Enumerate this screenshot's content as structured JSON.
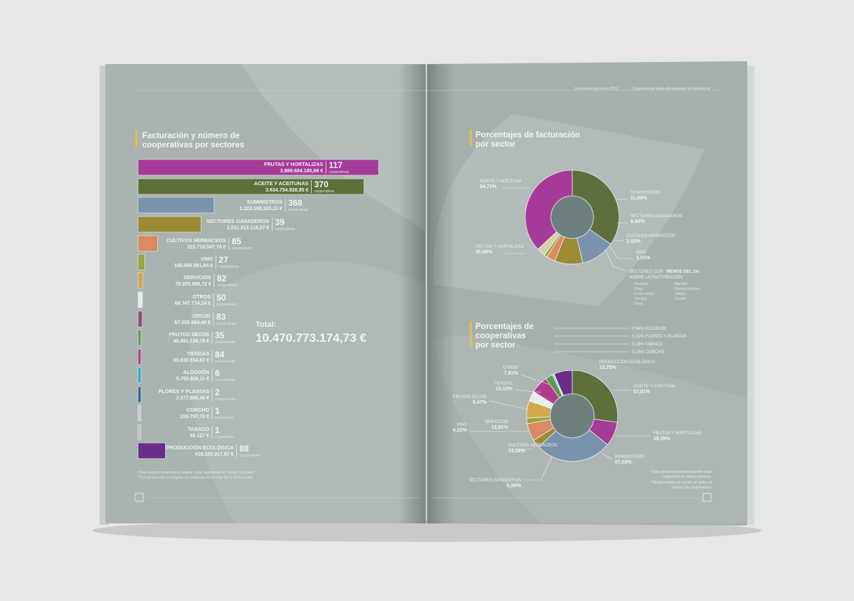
{
  "header": {
    "left_text": "Resumen ejecutivo 2022",
    "right_text": "Cooperativas Agro-alimentarias de Andalucía"
  },
  "left_page": {
    "title_line1": "Facturación  y número de",
    "title_line2": "cooperativas por sectores",
    "total_label": "Total:",
    "total_value": "10.470.773.174,73 €",
    "footnote1": "*Una misma cooperativa puede estar registrada en varios sectores.",
    "footnote2": "**La producción ecológica no computa en el total de la facturación."
  },
  "right_page": {
    "pie1_title_line1": "Porcentajes de facturación",
    "pie1_title_line2": "por sector",
    "pie2_title_line1": "Porcentajes de",
    "pie2_title_line2": "cooperativas",
    "pie2_title_line3": "por sector",
    "minor_header_1": "SECTORES CON",
    "minor_header_bold": "MENOS DEL 1%",
    "minor_header_2": "SOBRE LA FACTURACIÓN:",
    "minor_col1": [
      "· Servicios",
      "· Orujo",
      "· Frutos secos",
      "· Tiendas",
      "· Otros"
    ],
    "minor_col2": [
      "· Algodón",
      "· Flores y plantas",
      "· Tabaco",
      "· Corcho"
    ],
    "footnote1": "*Una misma cooperativa puede estar",
    "footnote2": "registrada en varios sectores.",
    "footnote3": "**El porcentaje por sector se aplica al",
    "footnote4": "número de cooperativas"
  },
  "chart_data": [
    {
      "type": "bar",
      "title": "Facturación  y número de cooperativas por sectores",
      "orientation": "horizontal",
      "categories": [
        "FRUTAS Y HORTALIZAS",
        "ACEITE Y ACEITUNAS",
        "SUMINISTROS",
        "SECTORES GANADEROS",
        "CULTIVOS HERBÁCEOS",
        "VINO",
        "SERVICIOS",
        "OTROS",
        "ORUJO",
        "FRUTOS SECOS",
        "TIENDAS",
        "ALGODÓN",
        "FLORES Y PLANTAS",
        "CORCHO",
        "TABACO",
        "PRODUCCIÓN ECOLÓGICA"
      ],
      "values": [
        3869684185.68,
        3634754928.85,
        1223168220.22,
        1011213116.07,
        315710547.76,
        106084981.84,
        78205686.72,
        69747774.14,
        67025964.48,
        45491126.78,
        38638834.83,
        5755928.11,
        3077988.46,
        155797.72,
        89127,
        439159917.67
      ],
      "value_labels": [
        "3.869.684.185,68 €",
        "3.634.754.928,85 €",
        "1.223.168.220,22 €",
        "1.011.213.116,07 €",
        "315.710.547,76 €",
        "106.084.981,84 €",
        "78.205.686,72 €",
        "69.747.774,14 €",
        "67.025.964,48 €",
        "45.491.126,78 €",
        "38.638.834,83 €",
        "5.755.928,11 €",
        "3.077.988,46 €",
        "155.797,72 €",
        "89.127 €",
        "439.159.917,67 €"
      ],
      "counts": [
        "117",
        "370",
        "368",
        "39",
        "85",
        "27",
        "82",
        "50",
        "83",
        "35",
        "84",
        "6",
        "2",
        "1",
        "1",
        "88"
      ],
      "count_units": [
        "cooperativas",
        "cooperativas",
        "cooperativas",
        "cooperativas",
        "cooperativas",
        "cooperativas",
        "cooperativas",
        "cooperativas",
        "cooperativas",
        "cooperativas",
        "cooperativas",
        "cooperativas",
        "cooperativas",
        "cooperativa",
        "cooperativa",
        "cooperativas"
      ],
      "colors": [
        "#a63a98",
        "#5e6f3c",
        "#7a92ab",
        "#9d8a35",
        "#d98a60",
        "#9aa33c",
        "#d1a84c",
        "#e8ecec",
        "#8e4c7d",
        "#5f9a48",
        "#b03d8b",
        "#3aa0c7",
        "#2f5f96",
        "#c5cfcf",
        "#b8c2c2",
        "#6a2e8a"
      ]
    },
    {
      "type": "pie",
      "title": "Porcentajes de facturación por sector",
      "labels": [
        "ACEITE Y ACEITUNA",
        "SUMINISTROS",
        "SECTORES GANADEROS",
        "CULTIVOS HERBÁCEOS",
        "VINO",
        "SECTORES CON MENOS DEL 1%",
        "FRUTAS Y HORTALIZAS"
      ],
      "values": [
        34.71,
        11.68,
        9.66,
        3.02,
        1.01,
        3.0,
        36.96
      ],
      "value_labels": [
        "34,71%",
        "11,68%",
        "9,66%",
        "3,02%",
        "1,01%",
        "",
        "36,96%"
      ],
      "colors": [
        "#5e6f3c",
        "#7a92ab",
        "#9d8a35",
        "#d98a60",
        "#9aa33c",
        "#d7cfa7",
        "#a63a98"
      ]
    },
    {
      "type": "pie",
      "title": "Porcentajes de cooperativas por sector",
      "labels": [
        "ACEITE Y ACEITUNA",
        "FRUTAS Y HORTALIZAS",
        "SUMINISTROS",
        "SECTORES GANADEROS",
        "CULTIVOS HERBÁCEOS",
        "VINO",
        "SERVICIOS",
        "FRUTOS SECOS",
        "TIENDAS",
        "OTROS",
        "ALGODÓN",
        "FLORES Y PLANTAS",
        "TABACO",
        "CORCHO",
        "PRODUCCIÓN ECOLÓGICA"
      ],
      "values": [
        57.81,
        18.28,
        57.5,
        6.09,
        13.28,
        4.22,
        12.81,
        5.47,
        13.13,
        7.81,
        0.94,
        0.31,
        0.16,
        0.16,
        13.75
      ],
      "value_labels": [
        "57,81%",
        "18,28%",
        "57,50%",
        "6,09%",
        "13,28%",
        "4,22%",
        "12,81%",
        "5,47%",
        "13,13%",
        "7,81%",
        "0,94%",
        "0,31%",
        "0,16%",
        "0,16%",
        "13,75%"
      ],
      "colors": [
        "#5e6f3c",
        "#a63a98",
        "#7a92ab",
        "#9d8a35",
        "#d98a60",
        "#9aa33c",
        "#d1a84c",
        "#5f9a48",
        "#b03d8b",
        "#e8ecec",
        "#3aa0c7",
        "#2f5f96",
        "#b8c2c2",
        "#c5cfcf",
        "#6a2e8a"
      ]
    }
  ]
}
